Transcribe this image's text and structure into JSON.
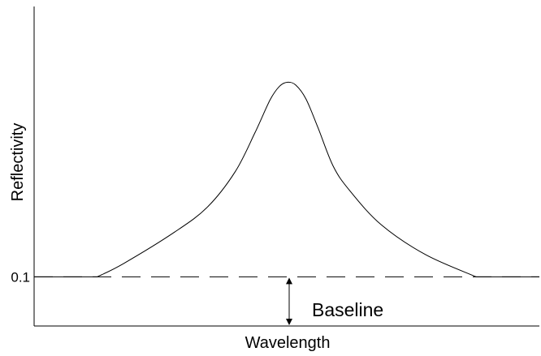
{
  "chart_data": {
    "type": "line",
    "xlabel": "Wavelength",
    "ylabel": "Reflectivity",
    "ylim": [
      0,
      0.65
    ],
    "y_ticks": [
      {
        "value": 0.1,
        "label": "0.1"
      }
    ],
    "x_ticks": [],
    "grid": false,
    "legend": "none",
    "series": [
      {
        "color": "#000000",
        "x": [
          0,
          0.125,
          0.177,
          0.278,
          0.343,
          0.398,
          0.437,
          0.467,
          0.486,
          0.502,
          0.518,
          0.538,
          0.562,
          0.592,
          0.625,
          0.687,
          0.775,
          0.875,
          1.0
        ],
        "values": [
          0.1,
          0.1,
          0.127,
          0.191,
          0.242,
          0.314,
          0.393,
          0.46,
          0.488,
          0.496,
          0.49,
          0.462,
          0.403,
          0.325,
          0.275,
          0.206,
          0.145,
          0.1,
          0.1
        ]
      }
    ],
    "baseline": {
      "value": 0.1,
      "style": "dashed",
      "annotation": "Baseline"
    }
  }
}
